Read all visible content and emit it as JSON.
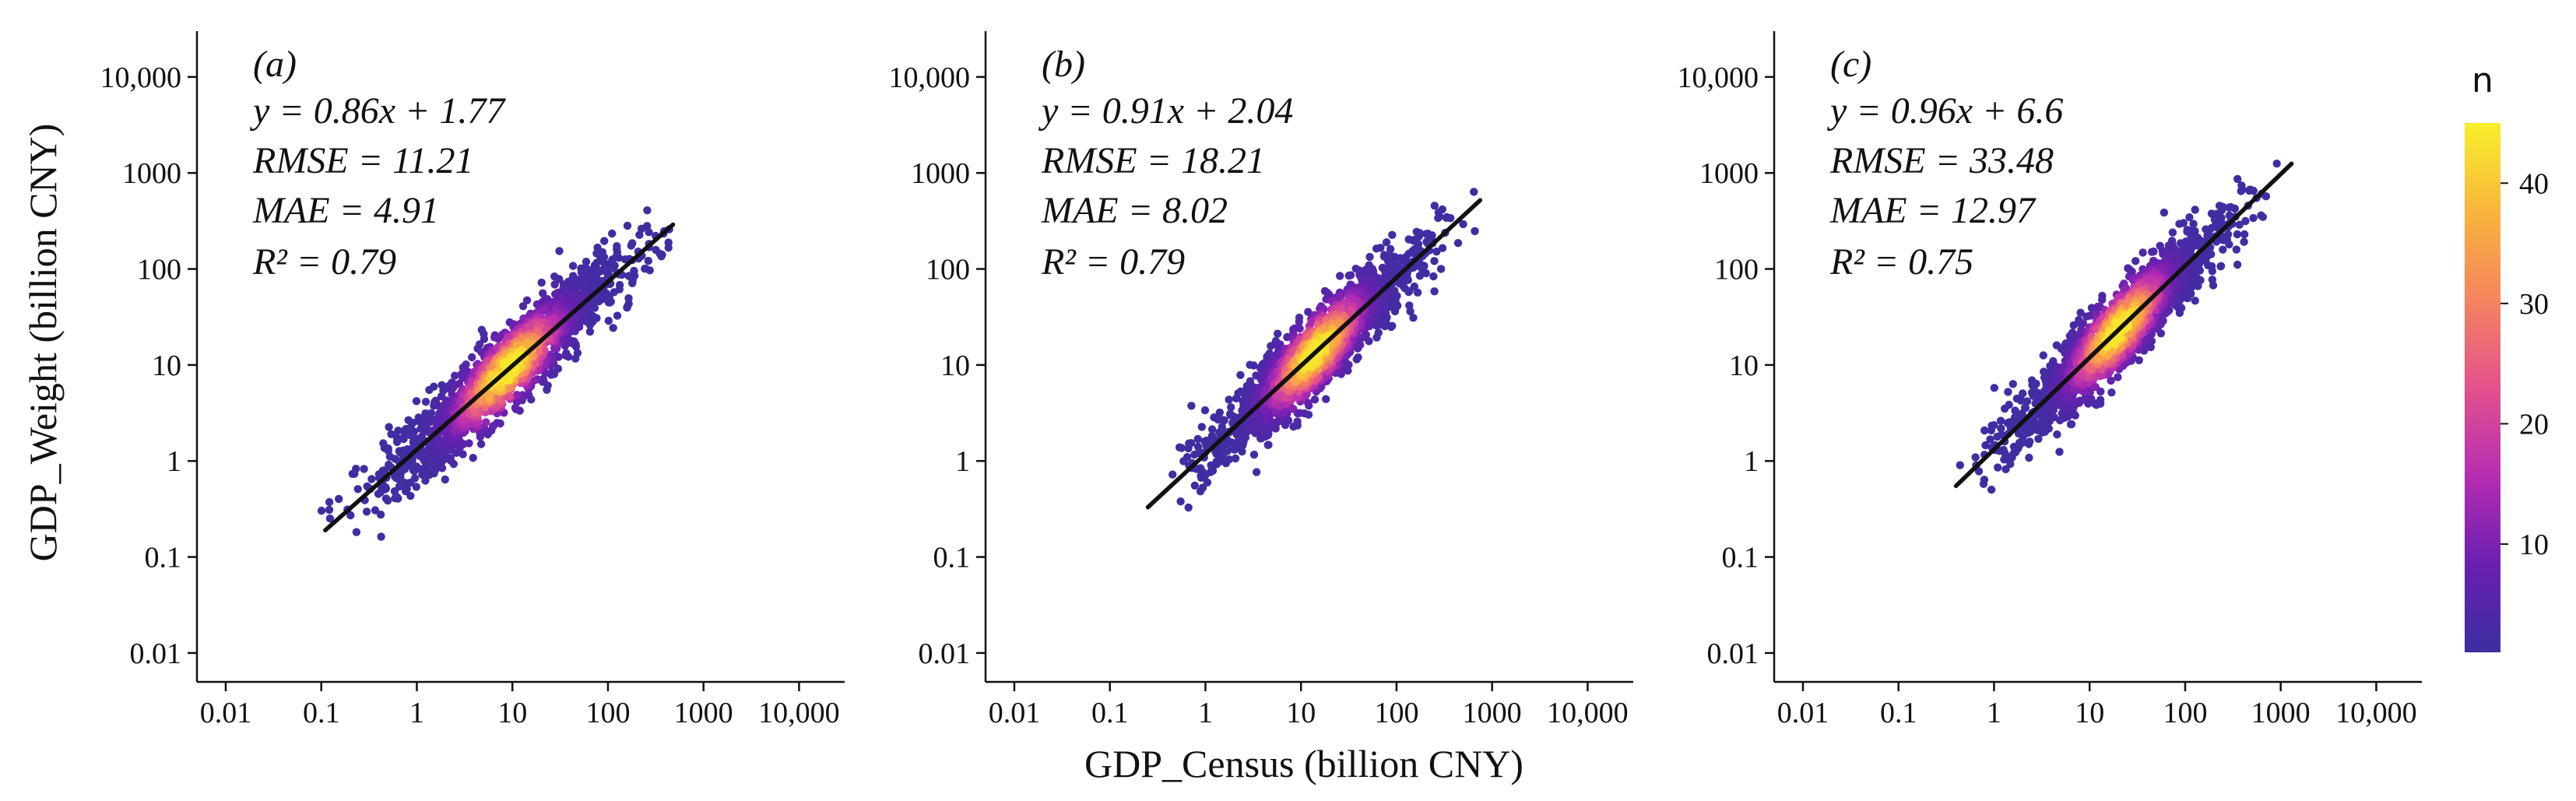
{
  "figure": {
    "ylabel": "GDP_Weight (billion CNY)",
    "xlabel": "GDP_Census (billion CNY)"
  },
  "chart_data": [
    {
      "type": "scatter",
      "panel_label": "(a)",
      "x_ticks": [
        "0.01",
        "0.1",
        "1",
        "10",
        "100",
        "1000",
        "10,000"
      ],
      "y_ticks": [
        "0.01",
        "0.1",
        "1",
        "10",
        "100",
        "1000",
        "10,000"
      ],
      "xlim": [
        0.005,
        30000
      ],
      "ylim": [
        0.005,
        30000
      ],
      "scale": "log",
      "fit": {
        "slope": 0.86,
        "intercept": 1.77,
        "equation": "y = 0.86x + 1.77",
        "x_start": 0.11,
        "x_end": 480,
        "y_start": 0.19,
        "y_end": 290
      },
      "stats": {
        "rmse": "RMSE = 11.21",
        "mae": "MAE = 4.91",
        "r2": "R² = 0.79"
      },
      "cloud": {
        "x_center_log10": 0.95,
        "spread": 0.62,
        "x_min": 0.1,
        "x_max": 450
      }
    },
    {
      "type": "scatter",
      "panel_label": "(b)",
      "x_ticks": [
        "0.01",
        "0.1",
        "1",
        "10",
        "100",
        "1000",
        "10,000"
      ],
      "y_ticks": [
        "0.01",
        "0.1",
        "1",
        "10",
        "100",
        "1000",
        "10,000"
      ],
      "xlim": [
        0.005,
        30000
      ],
      "ylim": [
        0.005,
        30000
      ],
      "scale": "log",
      "fit": {
        "slope": 0.91,
        "intercept": 2.04,
        "equation": "y = 0.91x + 2.04",
        "x_start": 0.25,
        "x_end": 750,
        "y_start": 0.33,
        "y_end": 520
      },
      "stats": {
        "rmse": "RMSE = 18.21",
        "mae": "MAE = 8.02",
        "r2": "R² = 0.79"
      },
      "cloud": {
        "x_center_log10": 1.15,
        "spread": 0.55,
        "x_min": 0.25,
        "x_max": 700
      }
    },
    {
      "type": "scatter",
      "panel_label": "(c)",
      "x_ticks": [
        "0.01",
        "0.1",
        "1",
        "10",
        "100",
        "1000",
        "10,000"
      ],
      "y_ticks": [
        "0.01",
        "0.1",
        "1",
        "10",
        "100",
        "1000",
        "10,000"
      ],
      "xlim": [
        0.005,
        30000
      ],
      "ylim": [
        0.005,
        30000
      ],
      "scale": "log",
      "fit": {
        "slope": 0.96,
        "intercept": 6.6,
        "equation": "y = 0.96x + 6.6",
        "x_start": 0.4,
        "x_end": 1300,
        "y_start": 0.55,
        "y_end": 1250
      },
      "stats": {
        "rmse": "RMSE = 33.48",
        "mae": "MAE = 12.97",
        "r2": "R² = 0.75"
      },
      "cloud": {
        "x_center_log10": 1.3,
        "spread": 0.55,
        "x_min": 0.4,
        "x_max": 1300
      }
    }
  ],
  "colorbar": {
    "title": "n",
    "min": 1,
    "max": 45,
    "ticks": [
      "10",
      "20",
      "30",
      "40"
    ],
    "tick_values": [
      10,
      20,
      30,
      40
    ],
    "colors": [
      "#3b2fa0",
      "#6a1fb0",
      "#b62db2",
      "#e3528c",
      "#f5845f",
      "#f9b53c",
      "#f7ef2a"
    ]
  }
}
